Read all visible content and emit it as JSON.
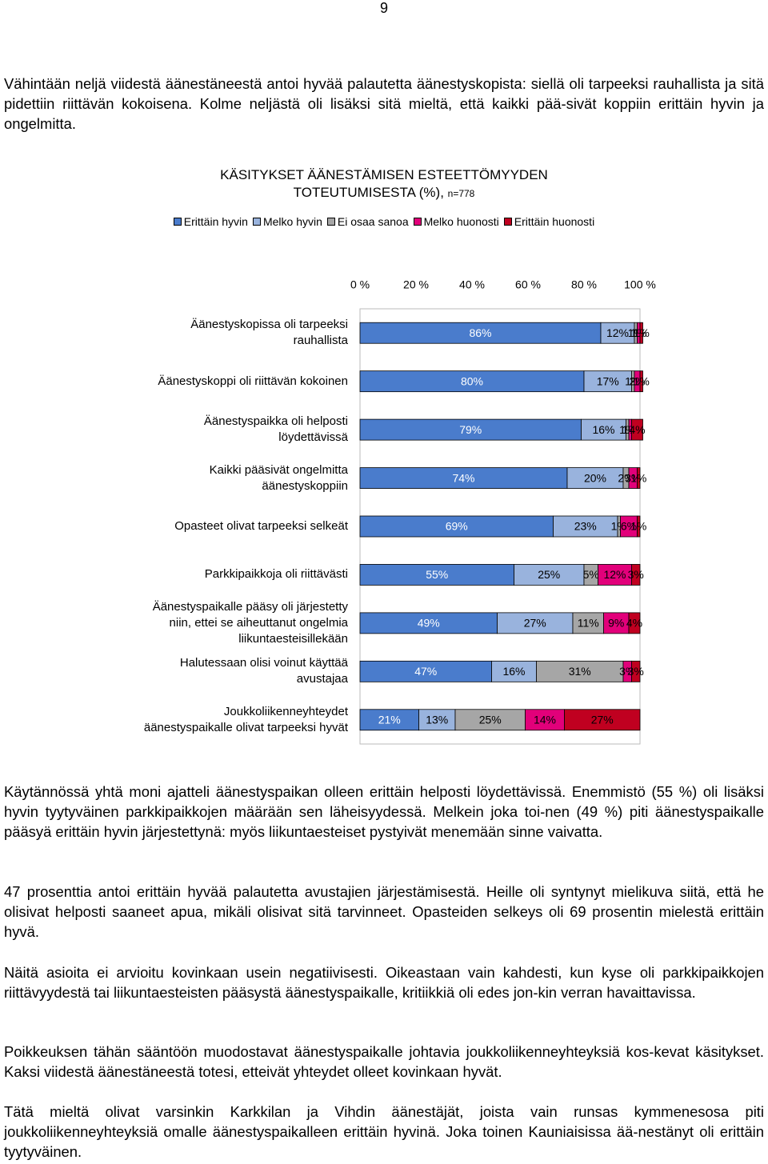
{
  "page_number": "9",
  "intro": "Vähintään neljä viidestä äänestäneestä antoi hyvää palautetta äänestyskopista: siellä oli tarpeeksi rauhallista ja sitä pidettiin riittävän kokoisena. Kolme neljästä oli lisäksi sitä mieltä, että kaikki pää-sivät koppiin erittäin hyvin ja ongelmitta.",
  "chart_data": {
    "type": "stacked-bar-horizontal",
    "title": "KÄSITYKSET ÄÄNESTÄMISEN ESTEETTÖMYYDEN\nTOTEUTUMISESTA (%),",
    "subtitle": "n=778",
    "categories": [
      "Äänestyskopissa oli tarpeeksi\nrauhallista",
      "Äänestyskoppi oli riittävän kokoinen",
      "Äänestyspaikka oli helposti\nlöydettävissä",
      "Kaikki pääsivät ongelmitta\näänestyskoppiin",
      "Opasteet olivat tarpeeksi selkeät",
      "Parkkipaikkoja oli riittävästi",
      "Äänestyspaikalle pääsy oli järjestetty\nniin, ettei se aiheuttanut ongelmia\nliikuntaesteisillekään",
      "Halutessaan olisi voinut käyttää\navustajaa",
      "Joukkoliikenneyhteydet\näänestyspaikalle olivat tarpeeksi hyvät"
    ],
    "series": [
      {
        "name": "Erittäin hyvin",
        "color": "#4a7ccc",
        "values": [
          86,
          80,
          79,
          74,
          69,
          55,
          49,
          47,
          21
        ],
        "value_labels": [
          "86%",
          "80%",
          "79%",
          "74%",
          "69%",
          "55%",
          "49%",
          "47%",
          "21%"
        ]
      },
      {
        "name": "Melko hyvin",
        "color": "#99b3dd",
        "values": [
          12,
          17,
          16,
          20,
          23,
          25,
          27,
          16,
          13
        ],
        "value_labels": [
          "12%",
          "17%",
          "16%",
          "20%",
          "23%",
          "25%",
          "27%",
          "16%",
          "13%"
        ]
      },
      {
        "name": "Ei osaa sanoa",
        "color": "#a6a6a6",
        "values": [
          1,
          1,
          1,
          2,
          1,
          5,
          11,
          31,
          25
        ],
        "value_labels": [
          "1%",
          "1%",
          "1%",
          "2%",
          "1%",
          "5%",
          "11%",
          "31%",
          "25%"
        ]
      },
      {
        "name": "Melko huonosti",
        "color": "#e2007a",
        "values": [
          1,
          2,
          1,
          3,
          6,
          12,
          9,
          3,
          14
        ],
        "value_labels": [
          "1%",
          "2%",
          "1%",
          "3%",
          "6%",
          "12%",
          "9%",
          "3%",
          "14%"
        ]
      },
      {
        "name": "Erittäin huonosti",
        "color": "#c00020",
        "values": [
          1,
          1,
          4,
          1,
          1,
          3,
          4,
          3,
          27
        ],
        "value_labels": [
          "1%",
          "1%",
          "4%",
          "1%",
          "1%",
          "3%",
          "4%",
          "3%",
          "27%"
        ]
      }
    ],
    "xlim": [
      0,
      100
    ],
    "xticks": [
      {
        "value": 0,
        "label": "0 %"
      },
      {
        "value": 20,
        "label": "20 %"
      },
      {
        "value": 40,
        "label": "40 %"
      },
      {
        "value": 60,
        "label": "60 %"
      },
      {
        "value": 80,
        "label": "80 %"
      },
      {
        "value": 100,
        "label": "100 %"
      }
    ],
    "legend": "top"
  },
  "paragraphs": [
    "Käytännössä yhtä moni ajatteli äänestyspaikan olleen erittäin helposti löydettävissä. Enemmistö (55 %) oli lisäksi hyvin tyytyväinen parkkipaikkojen määrään sen läheisyydessä. Melkein joka toi-nen (49 %) piti äänestyspaikalle pääsyä erittäin hyvin järjestettynä: myös liikuntaesteiset pystyivät menemään sinne vaivatta.",
    "47 prosenttia antoi erittäin hyvää palautetta avustajien järjestämisestä. Heille oli syntynyt mielikuva siitä, että he olisivat helposti saaneet apua, mikäli olisivat sitä tarvinneet. Opasteiden selkeys oli 69 prosentin mielestä erittäin hyvä.",
    "Näitä asioita ei arvioitu kovinkaan usein negatiivisesti. Oikeastaan vain kahdesti, kun kyse oli parkkipaikkojen riittävyydestä tai liikuntaesteisten pääsystä äänestyspaikalle, kritiikkiä oli edes jon-kin verran havaittavissa.",
    "Poikkeuksen tähän sääntöön muodostavat äänestyspaikalle johtavia joukkoliikenneyhteyksiä kos-kevat käsitykset. Kaksi viidestä äänestäneestä totesi, etteivät yhteydet olleet kovinkaan hyvät.",
    "Tätä mieltä olivat varsinkin Karkkilan ja Vihdin äänestäjät, joista vain runsas kymmenesosa piti joukkoliikenneyhteyksiä omalle äänestyspaikalleen erittäin hyvinä. Joka toinen Kauniaisissa ää-nestänyt oli erittäin tyytyväinen."
  ]
}
